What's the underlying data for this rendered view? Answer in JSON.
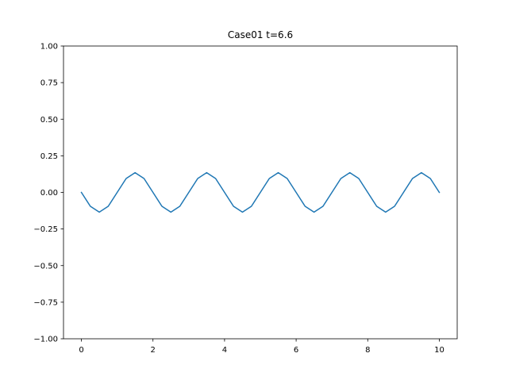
{
  "chart_data": {
    "type": "line",
    "title": "Case01 t=6.6",
    "xlabel": "",
    "ylabel": "",
    "xlim": [
      -0.5,
      10.5
    ],
    "ylim": [
      -1.0,
      1.0
    ],
    "grid": false,
    "x_ticks": [
      0,
      2,
      4,
      6,
      8,
      10
    ],
    "x_tick_labels": [
      "0",
      "2",
      "4",
      "6",
      "8",
      "10"
    ],
    "y_ticks": [
      -1.0,
      -0.75,
      -0.5,
      -0.25,
      0.0,
      0.25,
      0.5,
      0.75,
      1.0
    ],
    "y_tick_labels": [
      "−1.00",
      "−0.75",
      "−0.50",
      "−0.25",
      "0.00",
      "0.25",
      "0.50",
      "0.75",
      "1.00"
    ],
    "series": [
      {
        "color": "#1f77b4",
        "x": [
          0.0,
          0.25,
          0.5,
          0.75,
          1.0,
          1.25,
          1.5,
          1.75,
          2.0,
          2.25,
          2.5,
          2.75,
          3.0,
          3.25,
          3.5,
          3.75,
          4.0,
          4.25,
          4.5,
          4.75,
          5.0,
          5.25,
          5.5,
          5.75,
          6.0,
          6.25,
          6.5,
          6.75,
          7.0,
          7.25,
          7.5,
          7.75,
          8.0,
          8.25,
          8.5,
          8.75,
          9.0,
          9.25,
          9.5,
          9.75,
          10.0
        ],
        "y": [
          0.0,
          -0.095,
          -0.135,
          -0.095,
          0.0,
          0.095,
          0.135,
          0.095,
          0.0,
          -0.095,
          -0.135,
          -0.095,
          0.0,
          0.095,
          0.135,
          0.095,
          0.0,
          -0.095,
          -0.135,
          -0.095,
          0.0,
          0.095,
          0.135,
          0.095,
          0.0,
          -0.095,
          -0.135,
          -0.095,
          0.0,
          0.095,
          0.135,
          0.095,
          0.0,
          -0.095,
          -0.135,
          -0.095,
          0.0,
          0.095,
          0.135,
          0.095,
          0.0
        ]
      }
    ]
  }
}
